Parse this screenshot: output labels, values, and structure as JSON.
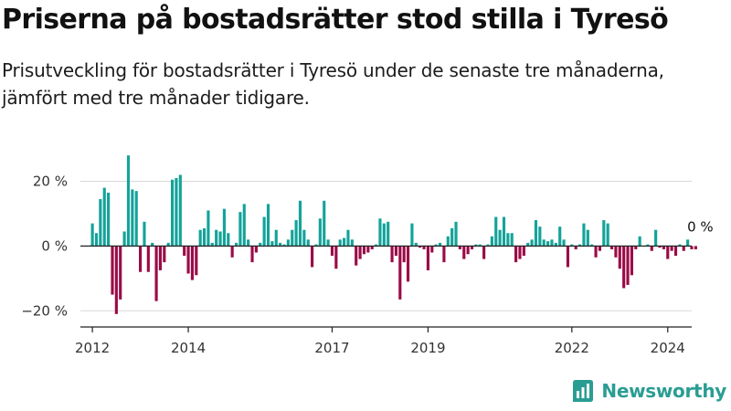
{
  "title": "Priserna på bostadsrätter stod stilla i Tyresö",
  "subtitle": "Prisutveckling för bostadsrätter i Tyresö under de senaste tre månaderna, jämfört med tre månader tidigare.",
  "brand": "Newsworthy",
  "colors": {
    "positive": "#13a39a",
    "negative": "#9b0b47",
    "axis": "#222222",
    "grid": "#d8d8d8"
  },
  "chart_data": {
    "type": "bar",
    "ylabel": "",
    "ylim": [
      -25,
      32
    ],
    "x_range": [
      2011.75,
      2024.5
    ],
    "yticks": [
      {
        "value": 20,
        "label": "20 %"
      },
      {
        "value": 0,
        "label": "0 %"
      },
      {
        "value": -20,
        "label": "−20 %"
      }
    ],
    "xticks": [
      "2012",
      "2014",
      "2017",
      "2019",
      "2022",
      "2024"
    ],
    "annotation": {
      "label": "0 %",
      "value": 0
    },
    "series": [
      {
        "name": "",
        "x_start": 2012.0,
        "x_step": 0.0833333,
        "values": [
          7,
          4,
          14.5,
          18,
          16.5,
          -15,
          -21,
          -16.5,
          4.5,
          28,
          17.5,
          17,
          -8,
          7.5,
          -8,
          1,
          -17,
          -7.5,
          -5,
          1,
          20.5,
          21,
          22,
          -3,
          -8.5,
          -10.5,
          -9,
          5,
          5.5,
          11,
          1,
          5,
          4.5,
          11.5,
          4,
          -3.5,
          1,
          10.5,
          13,
          2,
          -5,
          -2,
          1,
          9,
          13,
          1.5,
          5,
          1,
          0.5,
          2,
          5,
          8,
          14,
          5,
          2,
          -6.5,
          0.5,
          8.5,
          14,
          2,
          -3,
          -7,
          2,
          2.5,
          5,
          2,
          -6,
          -4,
          -2.5,
          -2,
          -1,
          0.5,
          8.5,
          7,
          7.5,
          -5,
          -3,
          -16.5,
          -5,
          -11,
          7,
          1,
          -0.5,
          -1,
          -7.5,
          -2,
          0.5,
          1,
          -5,
          3,
          5.5,
          7.5,
          -1,
          -4,
          -2.5,
          -1,
          0.5,
          0.5,
          -4,
          0.5,
          3,
          9,
          5,
          9,
          4,
          4,
          -5,
          -4,
          -3,
          1,
          2,
          8,
          6,
          2,
          1.5,
          2,
          1,
          6,
          2,
          -6.5,
          0.5,
          -1,
          0.5,
          7,
          5,
          0.5,
          -3.5,
          -1.5,
          8,
          7,
          -1,
          -3.5,
          -7,
          -13,
          -12,
          -9,
          -1,
          3,
          0,
          0.5,
          -1.5,
          5,
          -0.5,
          -1,
          -4,
          -1.5,
          -3,
          0.5,
          -1.5,
          2,
          -1,
          -1
        ]
      }
    ]
  }
}
